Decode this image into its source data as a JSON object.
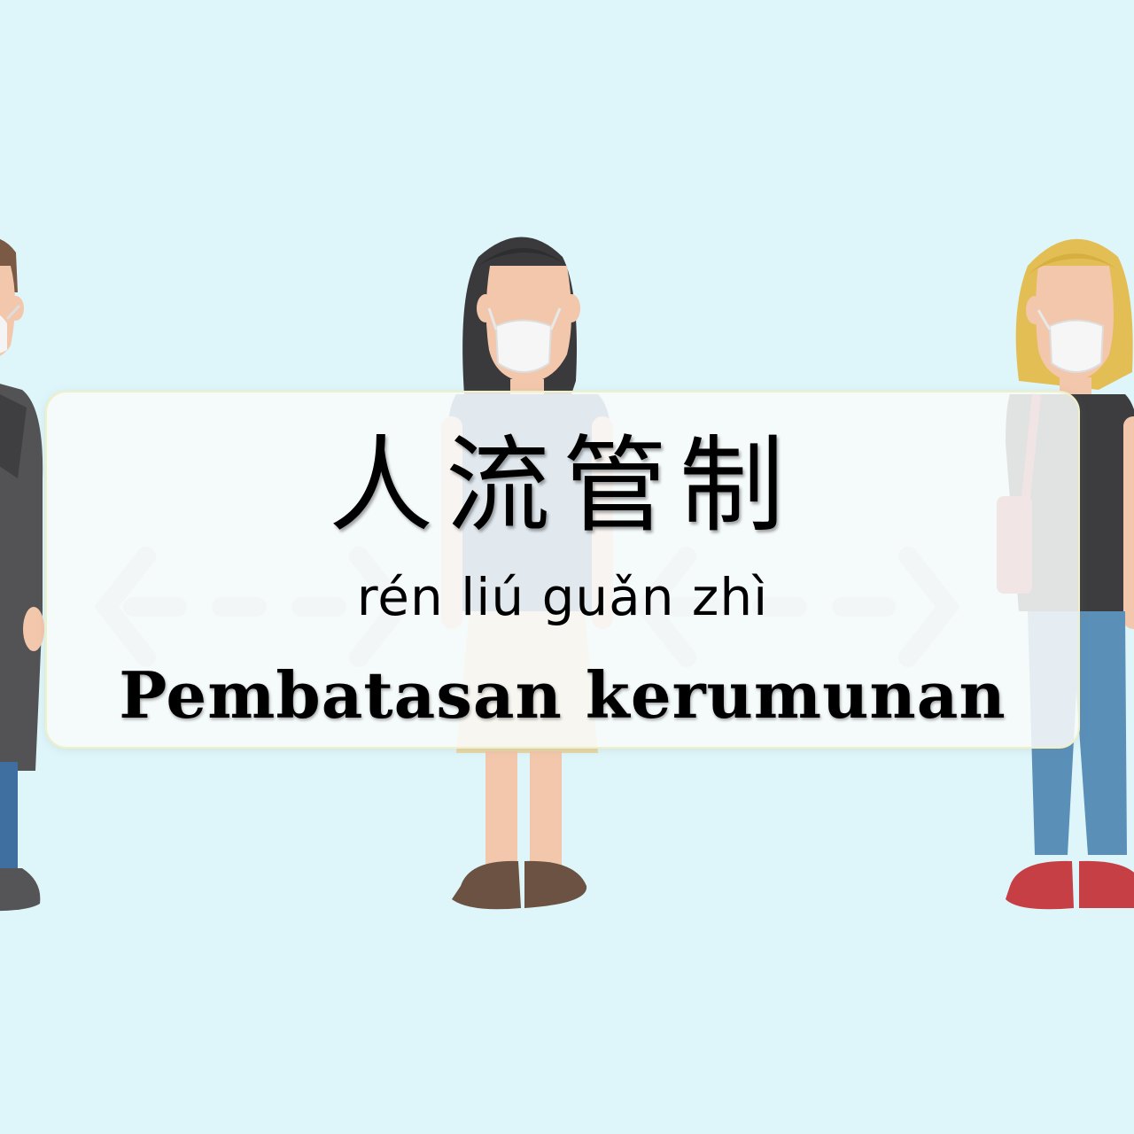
{
  "card": {
    "hanzi": "人流管制",
    "pinyin": "rén liú guǎn zhì",
    "translation": "Pembatasan kerumunan"
  },
  "scene": {
    "background_color": "#def6f9",
    "figures": [
      {
        "description": "man-with-mask",
        "icon": "man-figure-icon"
      },
      {
        "description": "woman-dark-hair-with-mask",
        "icon": "woman-figure-icon"
      },
      {
        "description": "woman-blonde-hair-with-mask",
        "icon": "woman-figure-icon"
      }
    ],
    "distance_arrows": [
      "left-right-arrow-icon",
      "left-right-arrow-icon"
    ]
  }
}
